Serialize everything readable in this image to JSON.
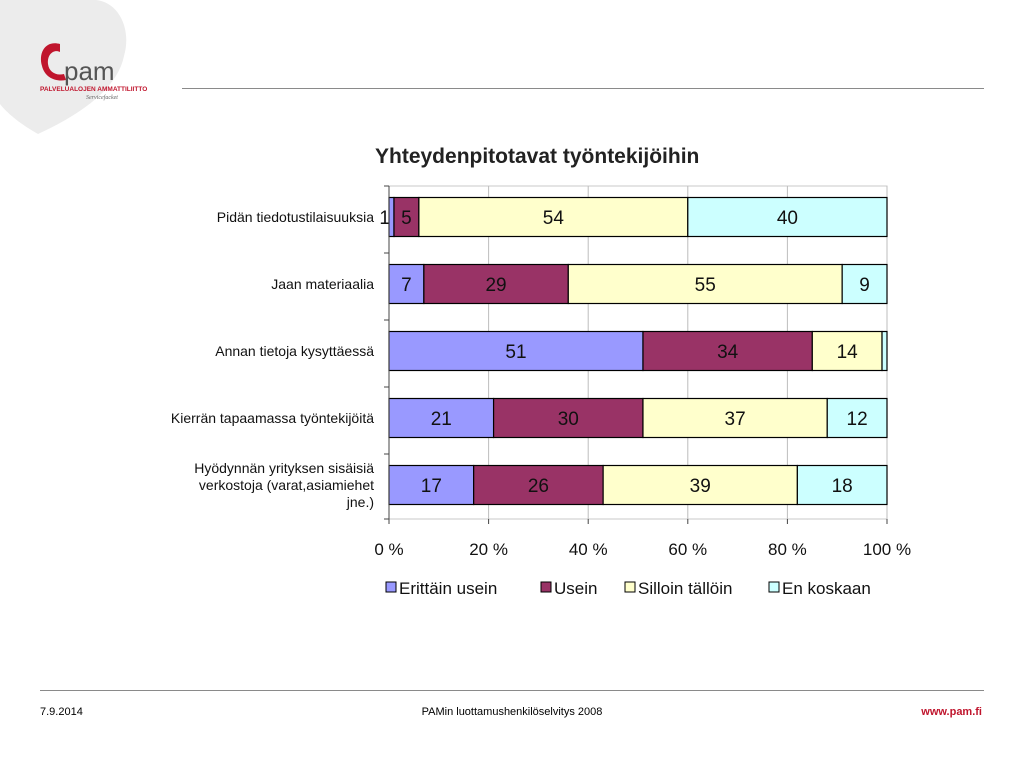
{
  "header": {
    "logo": {
      "brand": "pam",
      "org_name": "PALVELUALOJEN AMMATTILIITTO",
      "tagline": "Servicefacket",
      "brand_color": "#c0152d"
    }
  },
  "footer": {
    "date": "7.9.2014",
    "center_text": "PAMin luottamushenkilöselvitys 2008",
    "url": "www.pam.fi",
    "url_color": "#c0152d"
  },
  "chart_data": {
    "type": "bar",
    "orientation": "horizontal",
    "stacked": "percent",
    "title": "Yhteydenpitotavat työntekijöihin",
    "categories": [
      [
        "Pidän tiedotustilaisuuksia"
      ],
      [
        "Jaan materiaalia"
      ],
      [
        "Annan tietoja kysyttäessä"
      ],
      [
        "Kierrän tapaamassa työntekijöitä"
      ],
      [
        "Hyödynnän yrityksen sisäisiä",
        "verkostoja (varat,asiamiehet",
        "jne.)"
      ]
    ],
    "series": [
      {
        "name": "Erittäin usein",
        "color": "#9999ff",
        "values": [
          1,
          7,
          51,
          21,
          17
        ],
        "labels": [
          "1",
          "7",
          "51",
          "21",
          "17"
        ]
      },
      {
        "name": "Usein",
        "color": "#993366",
        "values": [
          5,
          29,
          34,
          30,
          26
        ],
        "labels": [
          "5",
          "29",
          "34",
          "30",
          "26"
        ]
      },
      {
        "name": "Silloin tällöin",
        "color": "#ffffcc",
        "values": [
          54,
          55,
          14,
          37,
          39
        ],
        "labels": [
          "54",
          "55",
          "14",
          "37",
          "39"
        ]
      },
      {
        "name": "En koskaan",
        "color": "#ccffff",
        "values": [
          40,
          9,
          1,
          12,
          18
        ],
        "labels": [
          "40",
          "9",
          "",
          "12",
          "18"
        ]
      }
    ],
    "x_ticks": [
      "0 %",
      "20 %",
      "40 %",
      "60 %",
      "80 %",
      "100 %"
    ],
    "xlim": [
      0,
      100
    ],
    "grid": "vertical",
    "legend_position": "bottom"
  }
}
